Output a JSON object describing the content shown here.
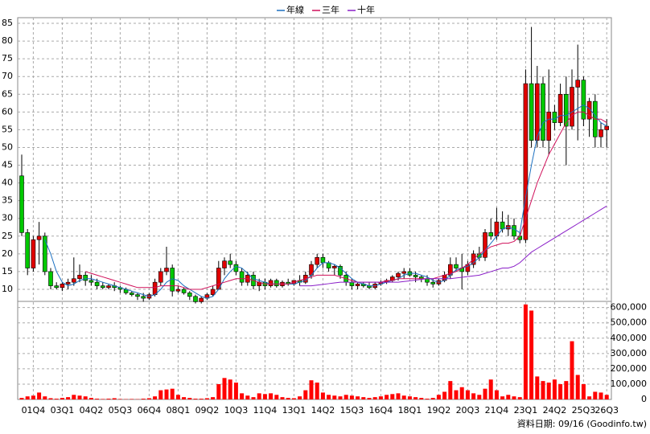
{
  "chart_data": {
    "type": "candlestick",
    "categories": [
      null,
      null,
      "01Q4",
      null,
      null,
      null,
      null,
      "03Q1",
      null,
      null,
      null,
      null,
      "04Q2",
      null,
      null,
      null,
      null,
      "05Q3",
      null,
      null,
      null,
      null,
      "06Q4",
      null,
      null,
      null,
      null,
      "08Q1",
      null,
      null,
      null,
      null,
      "09Q2",
      null,
      null,
      null,
      null,
      "10Q3",
      null,
      null,
      null,
      null,
      "11Q4",
      null,
      null,
      null,
      null,
      "13Q1",
      null,
      null,
      null,
      null,
      "14Q2",
      null,
      null,
      null,
      null,
      "15Q3",
      null,
      null,
      null,
      null,
      "16Q4",
      null,
      null,
      null,
      null,
      "18Q1",
      null,
      null,
      null,
      null,
      "19Q2",
      null,
      null,
      null,
      null,
      "20Q3",
      null,
      null,
      null,
      null,
      "21Q4",
      null,
      null,
      null,
      null,
      "23Q1",
      null,
      null,
      null,
      null,
      "24Q2",
      null,
      null,
      null,
      null,
      "25Q3",
      null,
      null,
      null,
      "26Q3"
    ],
    "ohlc": [
      [
        42,
        48,
        25,
        26
      ],
      [
        26,
        27,
        14,
        16
      ],
      [
        16,
        25,
        15,
        24
      ],
      [
        24,
        29,
        17,
        25
      ],
      [
        25,
        26,
        14,
        15
      ],
      [
        15,
        16,
        10,
        11
      ],
      [
        11,
        12,
        10,
        10.5
      ],
      [
        10.5,
        12,
        9.5,
        11.5
      ],
      [
        11.5,
        13,
        10,
        12
      ],
      [
        12,
        19,
        11,
        13
      ],
      [
        13,
        17,
        12,
        14
      ],
      [
        14,
        15,
        11,
        12.5
      ],
      [
        12.5,
        14,
        11,
        12
      ],
      [
        12,
        13,
        10,
        11
      ],
      [
        11,
        12,
        10,
        10.5
      ],
      [
        10.5,
        11.5,
        10,
        11
      ],
      [
        11,
        12,
        9.5,
        10.5
      ],
      [
        10.5,
        11,
        9,
        10
      ],
      [
        10,
        10.5,
        8.5,
        9
      ],
      [
        9,
        9.5,
        8,
        8.5
      ],
      [
        8.5,
        9,
        7,
        8
      ],
      [
        8,
        9,
        6.5,
        7.5
      ],
      [
        7.5,
        9,
        7,
        8.5
      ],
      [
        8.5,
        13,
        8,
        12
      ],
      [
        12,
        16,
        11,
        15
      ],
      [
        15,
        22,
        14,
        16
      ],
      [
        16,
        17,
        8,
        9.5
      ],
      [
        9.5,
        11,
        9,
        10
      ],
      [
        10,
        10.5,
        8.5,
        9
      ],
      [
        9,
        9.5,
        7,
        8
      ],
      [
        8,
        8.5,
        6,
        6.5
      ],
      [
        6.5,
        8,
        6,
        7.5
      ],
      [
        7.5,
        9,
        7,
        8.5
      ],
      [
        8.5,
        11,
        8,
        10
      ],
      [
        10,
        18,
        10,
        16
      ],
      [
        16,
        19,
        14,
        18
      ],
      [
        18,
        20,
        16,
        17
      ],
      [
        17,
        18,
        14,
        15
      ],
      [
        15,
        16,
        11,
        12
      ],
      [
        12,
        15,
        11,
        14
      ],
      [
        14,
        15,
        10,
        11
      ],
      [
        11,
        13,
        9.5,
        12
      ],
      [
        12,
        13,
        10,
        11
      ],
      [
        11,
        13,
        10.5,
        12.5
      ],
      [
        12.5,
        13,
        10.5,
        11
      ],
      [
        11,
        12.5,
        10.5,
        12
      ],
      [
        12,
        13,
        11,
        11.5
      ],
      [
        11.5,
        12,
        11,
        12.5
      ],
      [
        12.5,
        14,
        11,
        12
      ],
      [
        12,
        15,
        11.5,
        14
      ],
      [
        14,
        18,
        13,
        17
      ],
      [
        17,
        20,
        16,
        19
      ],
      [
        19,
        20,
        16,
        17.5
      ],
      [
        17.5,
        18,
        15,
        16
      ],
      [
        16,
        17,
        14,
        16.5
      ],
      [
        16.5,
        17,
        13,
        14
      ],
      [
        14,
        15,
        11,
        12
      ],
      [
        12,
        13,
        10,
        11
      ],
      [
        11,
        12,
        10,
        11.5
      ],
      [
        11.5,
        12,
        10.5,
        11
      ],
      [
        11,
        12,
        10,
        10.5
      ],
      [
        10.5,
        12,
        10,
        11.5
      ],
      [
        11.5,
        12.5,
        11,
        12
      ],
      [
        12,
        13,
        11.5,
        12.5
      ],
      [
        12.5,
        14,
        12,
        13.5
      ],
      [
        13.5,
        15,
        12.5,
        14.5
      ],
      [
        14.5,
        16,
        13,
        15
      ],
      [
        15,
        16,
        13.5,
        14
      ],
      [
        14,
        15,
        12,
        13.5
      ],
      [
        13.5,
        14,
        12,
        13
      ],
      [
        13,
        14,
        11,
        12
      ],
      [
        12,
        13,
        10.5,
        11.5
      ],
      [
        11.5,
        13,
        11,
        12.5
      ],
      [
        12.5,
        15,
        12,
        14
      ],
      [
        14,
        19,
        13,
        17
      ],
      [
        17,
        19,
        15,
        16
      ],
      [
        16,
        20,
        10,
        15
      ],
      [
        15,
        18,
        14,
        17
      ],
      [
        17,
        21,
        16,
        20
      ],
      [
        20,
        22,
        18,
        19
      ],
      [
        19,
        27,
        18,
        26
      ],
      [
        26,
        30,
        24,
        25
      ],
      [
        25,
        33,
        24,
        29
      ],
      [
        29,
        32,
        26,
        27
      ],
      [
        27,
        31,
        25,
        28
      ],
      [
        28,
        30,
        24,
        25
      ],
      [
        25,
        26,
        23,
        24
      ],
      [
        24,
        72,
        23,
        68
      ],
      [
        68,
        84,
        50,
        52
      ],
      [
        52,
        73,
        50,
        68
      ],
      [
        68,
        70,
        50,
        52
      ],
      [
        52,
        72,
        48,
        60
      ],
      [
        60,
        62,
        55,
        57
      ],
      [
        57,
        68,
        56,
        65
      ],
      [
        65,
        70,
        45,
        56
      ],
      [
        56,
        72,
        55,
        67
      ],
      [
        67,
        79,
        52,
        69
      ],
      [
        69,
        70,
        56,
        58
      ],
      [
        58,
        64,
        53,
        63
      ],
      [
        63,
        65,
        50,
        53
      ],
      [
        53,
        57,
        50,
        55
      ],
      [
        55,
        58,
        50,
        56
      ]
    ],
    "volume": [
      10000,
      20000,
      25000,
      45000,
      20000,
      8000,
      5000,
      10000,
      15000,
      30000,
      25000,
      20000,
      10000,
      5000,
      3000,
      5000,
      8000,
      3000,
      2000,
      3000,
      2000,
      5000,
      8000,
      20000,
      60000,
      65000,
      70000,
      30000,
      15000,
      10000,
      5000,
      5000,
      8000,
      15000,
      100000,
      140000,
      130000,
      110000,
      40000,
      25000,
      15000,
      40000,
      35000,
      40000,
      30000,
      15000,
      10000,
      8000,
      20000,
      60000,
      125000,
      110000,
      45000,
      30000,
      25000,
      20000,
      30000,
      25000,
      20000,
      15000,
      10000,
      15000,
      20000,
      30000,
      35000,
      40000,
      25000,
      20000,
      15000,
      10000,
      5000,
      10000,
      30000,
      50000,
      120000,
      60000,
      80000,
      60000,
      40000,
      30000,
      70000,
      130000,
      60000,
      20000,
      30000,
      20000,
      15000,
      620000,
      580000,
      150000,
      120000,
      110000,
      130000,
      100000,
      120000,
      380000,
      160000,
      100000,
      20000,
      50000,
      45000,
      30000
    ],
    "series": [
      {
        "name": "年線",
        "color": "#1a6fc0",
        "values": [
          null,
          null,
          null,
          null,
          24,
          20,
          15,
          12,
          11,
          11.5,
          12.5,
          13,
          13,
          12.5,
          12,
          11.5,
          11,
          10.5,
          10,
          9.5,
          9,
          8.5,
          8,
          8.5,
          10,
          12,
          13,
          12.5,
          11,
          10,
          9,
          8,
          7.5,
          8,
          10,
          13,
          15,
          16.5,
          16,
          14.5,
          13,
          12.5,
          12,
          11.5,
          11.5,
          11.5,
          11.5,
          11.5,
          12,
          12.5,
          14,
          16,
          17.5,
          17.5,
          17,
          16,
          14.5,
          13,
          12,
          11.5,
          11,
          11,
          11.5,
          12,
          12.5,
          13,
          14,
          14.5,
          14.5,
          14,
          13.5,
          12.5,
          12,
          12.5,
          14,
          15.5,
          16,
          16.5,
          17.5,
          19,
          21,
          23,
          25,
          27,
          27.5,
          27,
          26,
          36,
          45,
          53,
          57,
          58,
          58,
          59,
          59,
          60,
          61,
          62,
          61,
          59,
          57,
          56
        ]
      },
      {
        "name": "三年",
        "color": "#d0105a",
        "values": [
          null,
          null,
          null,
          null,
          null,
          null,
          null,
          null,
          null,
          null,
          null,
          15,
          14.5,
          14,
          13.5,
          13,
          12.5,
          12,
          11.5,
          11,
          10.5,
          10.5,
          10.5,
          10.5,
          11,
          11,
          11,
          11,
          10.5,
          10,
          10,
          10,
          10.5,
          11,
          11.5,
          12,
          12.5,
          13,
          13,
          13,
          12.5,
          12,
          11.5,
          11.5,
          11.5,
          11.5,
          11.5,
          12,
          12.5,
          13,
          13.5,
          14,
          14,
          14,
          14,
          13.5,
          13,
          12.5,
          12,
          12,
          12,
          12,
          12,
          12.5,
          12.5,
          13,
          13,
          13,
          13,
          13,
          13,
          13,
          13.5,
          14,
          14.5,
          15,
          16,
          17,
          18.5,
          20,
          21,
          22,
          22.5,
          23,
          23,
          23.5,
          25,
          30,
          35,
          40,
          44,
          48,
          51,
          54,
          57,
          59,
          60,
          60,
          59,
          58,
          58,
          57
        ]
      },
      {
        "name": "十年",
        "color": "#8a1ec8",
        "values": [
          null,
          null,
          null,
          null,
          null,
          null,
          null,
          null,
          null,
          null,
          null,
          null,
          null,
          null,
          null,
          null,
          null,
          null,
          null,
          null,
          null,
          null,
          null,
          null,
          null,
          null,
          null,
          null,
          null,
          null,
          null,
          null,
          null,
          null,
          null,
          null,
          null,
          null,
          null,
          null,
          null,
          null,
          null,
          null,
          null,
          null,
          null,
          null,
          11,
          11,
          11,
          11.2,
          11.4,
          11.6,
          11.8,
          12,
          12,
          12,
          12,
          12,
          12,
          12,
          12,
          12,
          12,
          12,
          12.2,
          12.4,
          12.6,
          12.8,
          13,
          13,
          13,
          13,
          13,
          13.2,
          13.4,
          13.6,
          13.8,
          14,
          14.5,
          15,
          15.5,
          16,
          16,
          16.5,
          17.5,
          19,
          20.5,
          21.5,
          22.5,
          23.5,
          24.5,
          25.5,
          26.5,
          27.5,
          28.5,
          29.5,
          30.5,
          31.5,
          32.5,
          33.5
        ]
      }
    ],
    "up_color": "#e00000",
    "down_color": "#00c800",
    "volume_color": "#ff0000",
    "ylim": [
      6.6,
      86.6
    ],
    "yticks": [
      10,
      15,
      20,
      25,
      30,
      35,
      40,
      45,
      50,
      55,
      60,
      65,
      70,
      75,
      80,
      85
    ],
    "y2lim": [
      0,
      640000
    ],
    "y2ticks": [
      0,
      {
        "value": 100000,
        "label": "100,000"
      },
      {
        "value": 200000,
        "label": "200,000"
      },
      {
        "value": 300000,
        "label": "300,000"
      },
      {
        "value": 400000,
        "label": "400,000"
      },
      {
        "value": 500000,
        "label": "500,000"
      },
      {
        "value": 600000,
        "label": "600,000"
      }
    ],
    "grid": true,
    "footnote": "資料日期: 09/16 (Goodinfo.tw)"
  }
}
